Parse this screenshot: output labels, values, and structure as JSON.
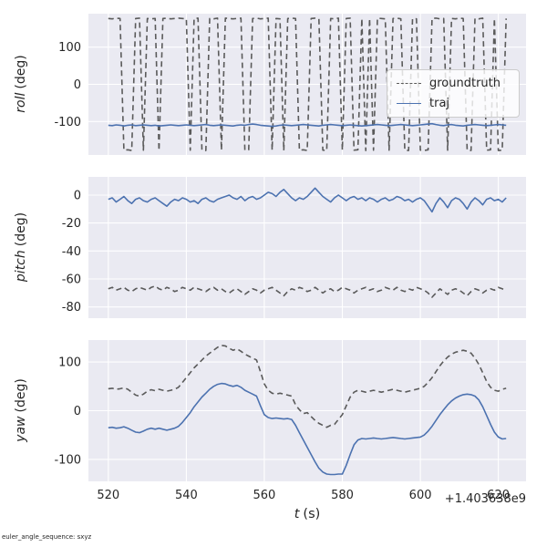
{
  "figure": {
    "xlabel": {
      "var": "t",
      "unit": "(s)"
    },
    "offset_text": "+1.403638e9",
    "footer": "euler_angle_sequence: sxyz",
    "ylabels": [
      {
        "var": "roll",
        "unit": "(deg)"
      },
      {
        "var": "pitch",
        "unit": "(deg)"
      },
      {
        "var": "yaw",
        "unit": "(deg)"
      }
    ],
    "legend": [
      {
        "label": "groundtruth",
        "style": "dashed",
        "color": "#5a5a5a"
      },
      {
        "label": "traj",
        "style": "solid",
        "color": "#4C72B0"
      }
    ]
  },
  "chart_data": {
    "type": "line",
    "title": "",
    "xlabel": "t (s)",
    "x_offset": "+1.403638e9",
    "xlim": [
      514.9,
      627.1
    ],
    "xticks": [
      520,
      540,
      560,
      580,
      600,
      620
    ],
    "colors": {
      "axes_bg": "#eaeaf2",
      "grid": "#ffffff",
      "groundtruth": "#5a5a5a",
      "traj": "#4C72B0"
    },
    "legend_position": "upper right of first subplot",
    "grid": true,
    "t": [
      520,
      521,
      522,
      523,
      524,
      525,
      526,
      527,
      528,
      529,
      530,
      531,
      532,
      533,
      534,
      535,
      536,
      537,
      538,
      539,
      540,
      541,
      542,
      543,
      544,
      545,
      546,
      547,
      548,
      549,
      550,
      551,
      552,
      553,
      554,
      555,
      556,
      557,
      558,
      559,
      560,
      561,
      562,
      563,
      564,
      565,
      566,
      567,
      568,
      569,
      570,
      571,
      572,
      573,
      574,
      575,
      576,
      577,
      578,
      579,
      580,
      581,
      582,
      583,
      584,
      585,
      586,
      587,
      588,
      589,
      590,
      591,
      592,
      593,
      594,
      595,
      596,
      597,
      598,
      599,
      600,
      601,
      602,
      603,
      604,
      605,
      606,
      607,
      608,
      609,
      610,
      611,
      612,
      613,
      614,
      615,
      616,
      617,
      618,
      619,
      620,
      621,
      622
    ],
    "subplots": [
      {
        "name": "roll",
        "ylabel": "roll (deg)",
        "ylim": [
          -190,
          190
        ],
        "yticks": [
          -100,
          0,
          100
        ],
        "series": [
          {
            "name": "groundtruth",
            "color": "#5a5a5a",
            "dash": true,
            "values": [
              177,
              176,
              178,
              177,
              -177,
              -176,
              -178,
              177,
              178,
              -177,
              177,
              176,
              177,
              -178,
              177,
              178,
              176,
              177,
              178,
              177,
              176,
              -177,
              177,
              178,
              -177,
              -178,
              177,
              176,
              178,
              -177,
              178,
              177,
              176,
              177,
              178,
              -177,
              -176,
              177,
              178,
              176,
              177,
              178,
              -177,
              177,
              176,
              -178,
              177,
              178,
              177,
              -177,
              -176,
              -178,
              177,
              178,
              176,
              -177,
              -178,
              177,
              176,
              178,
              -177,
              177,
              178,
              -177,
              -176,
              177,
              -178,
              177,
              -177,
              178,
              177,
              176,
              -177,
              177,
              178,
              176,
              -177,
              -178,
              177,
              176,
              -177,
              -178,
              -176,
              177,
              178,
              176,
              177,
              -177,
              177,
              176,
              178,
              177,
              -177,
              -178,
              177,
              176,
              178,
              -177,
              -176,
              177,
              -178,
              -177,
              177
            ]
          },
          {
            "name": "traj",
            "color": "#4C72B0",
            "dash": false,
            "values": [
              -110,
              -111,
              -109,
              -110,
              -112,
              -110,
              -109,
              -111,
              -110,
              -109,
              -110,
              -111,
              -110,
              -112,
              -111,
              -110,
              -109,
              -110,
              -111,
              -110,
              -109,
              -110,
              -111,
              -110,
              -109,
              -108,
              -110,
              -111,
              -110,
              -109,
              -110,
              -111,
              -112,
              -110,
              -109,
              -110,
              -108,
              -107,
              -108,
              -110,
              -111,
              -112,
              -113,
              -112,
              -110,
              -109,
              -110,
              -111,
              -110,
              -109,
              -108,
              -109,
              -110,
              -111,
              -112,
              -110,
              -109,
              -108,
              -109,
              -110,
              -111,
              -110,
              -109,
              -110,
              -111,
              -112,
              -111,
              -110,
              -109,
              -108,
              -109,
              -110,
              -111,
              -110,
              -109,
              -108,
              -109,
              -110,
              -111,
              -110,
              -109,
              -108,
              -107,
              -106,
              -108,
              -110,
              -111,
              -109,
              -108,
              -110,
              -111,
              -112,
              -110,
              -109,
              -108,
              -109,
              -110,
              -111,
              -110,
              -109,
              -108,
              -109,
              -110
            ]
          }
        ]
      },
      {
        "name": "pitch",
        "ylabel": "pitch (deg)",
        "ylim": [
          -88,
          13
        ],
        "yticks": [
          -80,
          -60,
          -40,
          -20,
          0
        ],
        "series": [
          {
            "name": "groundtruth",
            "color": "#5a5a5a",
            "dash": true,
            "values": [
              -67,
              -66,
              -68,
              -67,
              -66,
              -68,
              -69,
              -67,
              -66,
              -67,
              -68,
              -66,
              -65,
              -67,
              -68,
              -66,
              -67,
              -69,
              -68,
              -66,
              -67,
              -68,
              -66,
              -67,
              -68,
              -69,
              -67,
              -66,
              -68,
              -67,
              -69,
              -70,
              -68,
              -67,
              -69,
              -71,
              -69,
              -67,
              -68,
              -70,
              -68,
              -67,
              -66,
              -68,
              -70,
              -72,
              -69,
              -67,
              -68,
              -66,
              -67,
              -69,
              -68,
              -66,
              -68,
              -70,
              -68,
              -67,
              -69,
              -68,
              -66,
              -67,
              -68,
              -70,
              -68,
              -67,
              -66,
              -68,
              -67,
              -69,
              -68,
              -66,
              -67,
              -68,
              -66,
              -68,
              -69,
              -67,
              -68,
              -66,
              -67,
              -68,
              -70,
              -73,
              -70,
              -67,
              -69,
              -71,
              -68,
              -67,
              -68,
              -70,
              -72,
              -69,
              -67,
              -68,
              -70,
              -68,
              -67,
              -68,
              -66,
              -67,
              -68
            ]
          },
          {
            "name": "traj",
            "color": "#4C72B0",
            "dash": false,
            "values": [
              -3,
              -2,
              -5,
              -3,
              -1,
              -4,
              -6,
              -3,
              -2,
              -4,
              -5,
              -3,
              -2,
              -4,
              -6,
              -8,
              -5,
              -3,
              -4,
              -2,
              -3,
              -5,
              -4,
              -6,
              -3,
              -2,
              -4,
              -5,
              -3,
              -2,
              -1,
              0,
              -2,
              -3,
              -1,
              -4,
              -2,
              -1,
              -3,
              -2,
              0,
              2,
              1,
              -1,
              2,
              4,
              1,
              -2,
              -4,
              -2,
              -3,
              -1,
              2,
              5,
              2,
              -1,
              -3,
              -5,
              -2,
              0,
              -2,
              -4,
              -2,
              -1,
              -3,
              -2,
              -4,
              -2,
              -3,
              -5,
              -3,
              -2,
              -4,
              -3,
              -1,
              -2,
              -4,
              -3,
              -5,
              -3,
              -2,
              -4,
              -8,
              -12,
              -6,
              -2,
              -5,
              -9,
              -4,
              -2,
              -3,
              -6,
              -10,
              -5,
              -2,
              -4,
              -7,
              -3,
              -2,
              -4,
              -3,
              -5,
              -2
            ]
          }
        ]
      },
      {
        "name": "yaw",
        "ylabel": "yaw (deg)",
        "ylim": [
          -145,
          145
        ],
        "yticks": [
          -100,
          0,
          100
        ],
        "series": [
          {
            "name": "groundtruth",
            "color": "#5a5a5a",
            "dash": true,
            "values": [
              45,
              46,
              44,
              45,
              47,
              44,
              38,
              32,
              30,
              34,
              40,
              43,
              41,
              44,
              42,
              40,
              42,
              44,
              48,
              58,
              68,
              78,
              88,
              96,
              104,
              112,
              118,
              124,
              130,
              134,
              133,
              128,
              124,
              127,
              122,
              116,
              112,
              108,
              104,
              80,
              55,
              42,
              36,
              34,
              36,
              34,
              32,
              30,
              12,
              2,
              -6,
              -4,
              -12,
              -20,
              -26,
              -30,
              -34,
              -30,
              -28,
              -18,
              -8,
              10,
              28,
              38,
              42,
              40,
              38,
              40,
              42,
              40,
              38,
              40,
              42,
              44,
              42,
              40,
              38,
              40,
              42,
              44,
              46,
              50,
              58,
              68,
              80,
              92,
              102,
              110,
              116,
              120,
              122,
              124,
              122,
              118,
              108,
              95,
              78,
              60,
              48,
              42,
              40,
              44,
              46
            ]
          },
          {
            "name": "traj",
            "color": "#4C72B0",
            "dash": false,
            "values": [
              -35,
              -34,
              -36,
              -35,
              -33,
              -36,
              -40,
              -44,
              -45,
              -42,
              -38,
              -36,
              -38,
              -36,
              -38,
              -40,
              -38,
              -36,
              -32,
              -24,
              -14,
              -4,
              8,
              18,
              28,
              36,
              44,
              50,
              54,
              56,
              55,
              52,
              50,
              52,
              48,
              42,
              38,
              34,
              30,
              10,
              -8,
              -14,
              -16,
              -15,
              -16,
              -17,
              -16,
              -18,
              -30,
              -45,
              -60,
              -75,
              -90,
              -105,
              -118,
              -126,
              -130,
              -131,
              -131,
              -130,
              -130,
              -112,
              -90,
              -70,
              -60,
              -57,
              -58,
              -57,
              -56,
              -57,
              -58,
              -57,
              -56,
              -55,
              -56,
              -57,
              -58,
              -57,
              -56,
              -55,
              -54,
              -50,
              -42,
              -32,
              -20,
              -8,
              2,
              12,
              20,
              26,
              30,
              33,
              34,
              33,
              30,
              22,
              8,
              -10,
              -28,
              -44,
              -54,
              -58,
              -57
            ]
          }
        ]
      }
    ]
  }
}
